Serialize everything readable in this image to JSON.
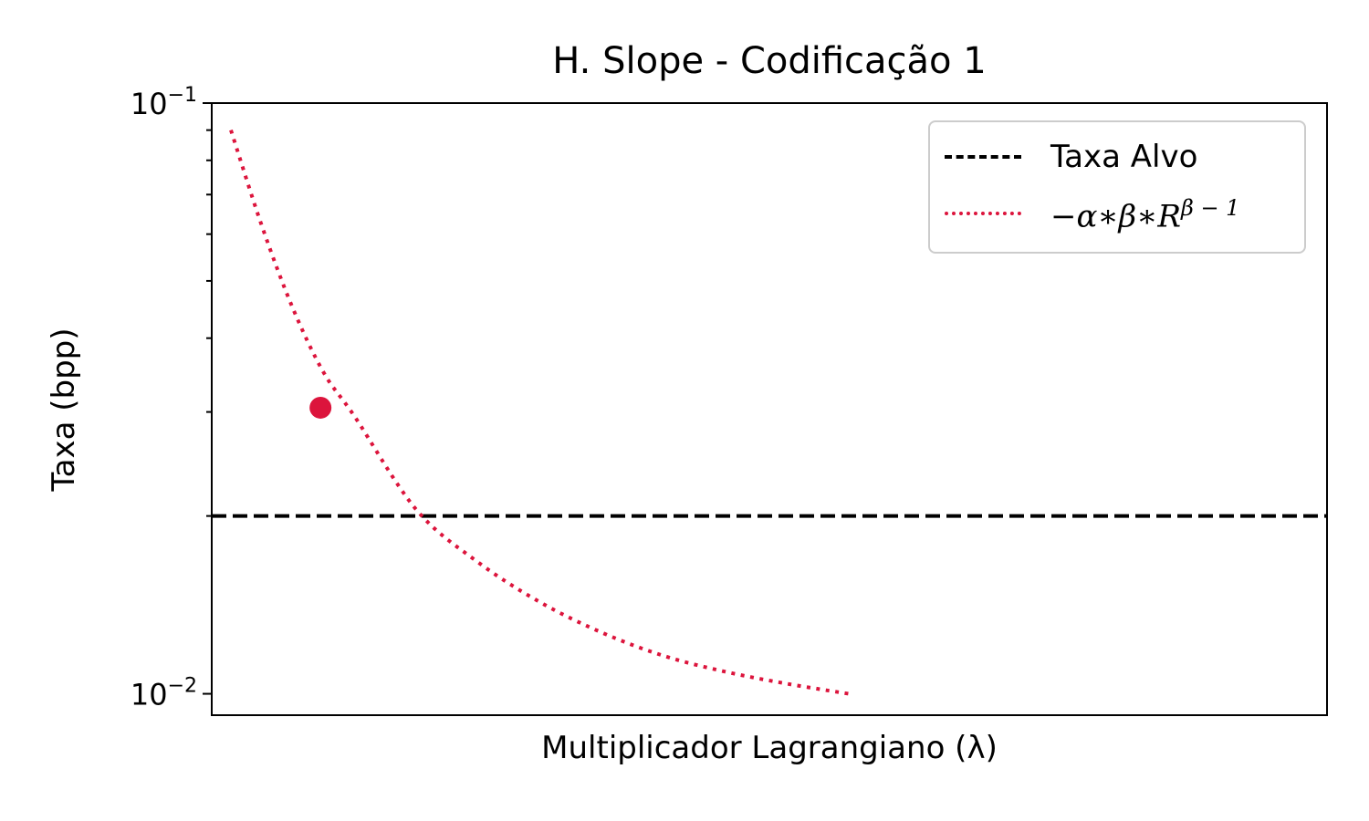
{
  "chart_data": {
    "type": "line",
    "title": "H. Slope - Codificação 1",
    "xlabel": "Multiplicador Lagrangiano (λ)",
    "ylabel": "Taxa (bpp)",
    "yscale": "log",
    "ylim": [
      0.0092,
      0.1
    ],
    "yticks": [
      {
        "value": 0.1,
        "base": "10",
        "exp": "−1"
      },
      {
        "value": 0.01,
        "base": "10",
        "exp": "−2"
      }
    ],
    "xticks_shown": false,
    "grid": false,
    "legend_position": "top-right",
    "series": [
      {
        "name": "Taxa Alvo",
        "style": "dashed",
        "color": "#000000",
        "kind": "hline",
        "y": 0.02
      },
      {
        "name": "−α∗β∗R^(β−1)",
        "name_base": "−α∗β∗R",
        "name_sup": "β − 1",
        "style": "dotted",
        "color": "#dc143c",
        "x": [
          0.0,
          0.05,
          0.1,
          0.15,
          0.2,
          0.3,
          0.4,
          0.5,
          0.6,
          0.7,
          0.8,
          0.9,
          1.0
        ],
        "y": [
          0.09,
          0.062,
          0.045,
          0.035,
          0.0295,
          0.0205,
          0.0167,
          0.0143,
          0.0127,
          0.0116,
          0.0109,
          0.0104,
          0.01
        ]
      }
    ],
    "highlight_point": {
      "x": 0.145,
      "y": 0.0305,
      "color": "#dc143c"
    }
  }
}
